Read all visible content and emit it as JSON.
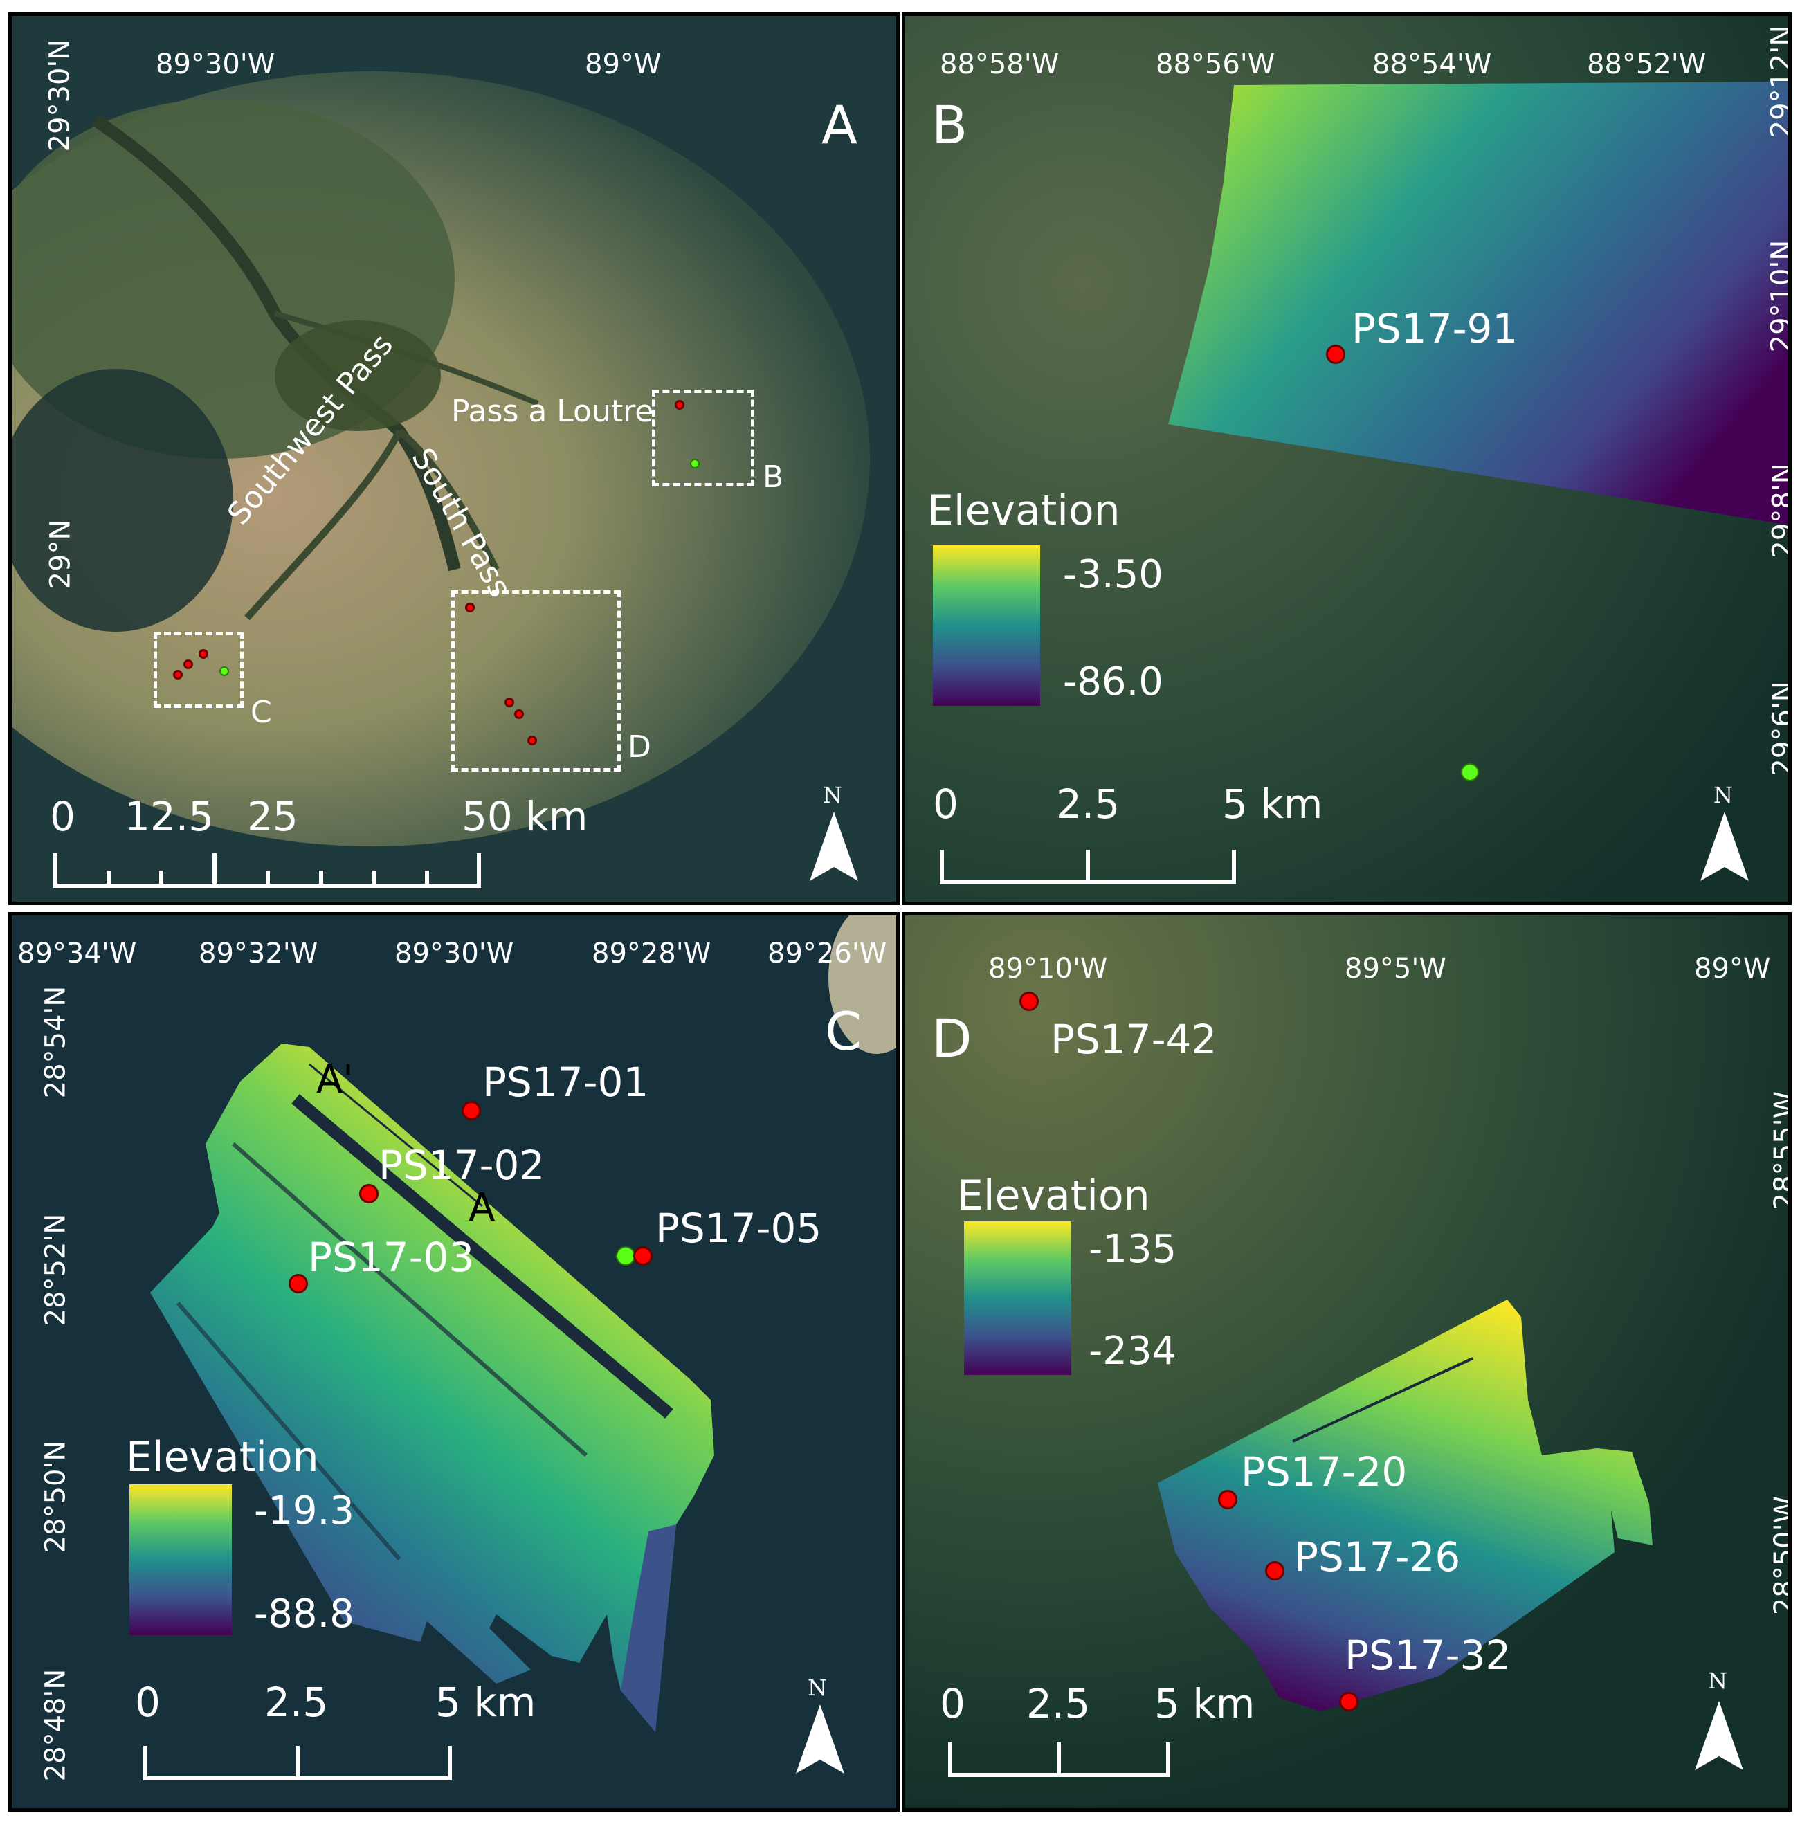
{
  "panels": {
    "A": {
      "label": "A",
      "lon_ticks": [
        "89°30'W",
        "89°W"
      ],
      "lat_ticks": [
        "29°30'N",
        "29°N"
      ],
      "place_labels": {
        "pass_a_loutre": "Pass a Loutre",
        "southwest_pass": "Southwest Pass",
        "south_pass": "South Pass"
      },
      "inset_labels": {
        "b": "B",
        "c": "C",
        "d": "D"
      },
      "scale": {
        "n0": "0",
        "n1": "12.5",
        "n2": "25",
        "n3": "50 km"
      },
      "north": "N"
    },
    "B": {
      "label": "B",
      "lon_ticks": [
        "88°58'W",
        "88°56'W",
        "88°54'W",
        "88°52'W"
      ],
      "lat_ticks": [
        "29°12'N",
        "29°10'N",
        "29°8'N",
        "29°6'N"
      ],
      "sites": {
        "ps1791": "PS17-91"
      },
      "legend": {
        "title": "Elevation",
        "max": "-3.50",
        "min": "-86.0"
      },
      "scale": {
        "n0": "0",
        "n1": "2.5",
        "n2": "5 km"
      },
      "north": "N"
    },
    "C": {
      "label": "C",
      "lon_ticks": [
        "89°34'W",
        "89°32'W",
        "89°30'W",
        "89°28'W",
        "89°26'W"
      ],
      "lat_ticks": [
        "28°54'N",
        "28°52'N",
        "28°50'N",
        "28°48'N"
      ],
      "sites": {
        "ps1701": "PS17-01",
        "ps1702": "PS17-02",
        "ps1703": "PS17-03",
        "ps1705": "PS17-05"
      },
      "profile": {
        "a": "A",
        "a_prime": "A'"
      },
      "legend": {
        "title": "Elevation",
        "max": "-19.3",
        "min": "-88.8"
      },
      "scale": {
        "n0": "0",
        "n1": "2.5",
        "n2": "5 km"
      },
      "north": "N"
    },
    "D": {
      "label": "D",
      "lon_ticks": [
        "89°10'W",
        "89°5'W",
        "89°W"
      ],
      "lat_ticks": [
        "28°55'W",
        "28°50'W"
      ],
      "sites": {
        "ps1742": "PS17-42",
        "ps1720": "PS17-20",
        "ps1726": "PS17-26",
        "ps1732": "PS17-32"
      },
      "legend": {
        "title": "Elevation",
        "max": "-135",
        "min": "-234"
      },
      "scale": {
        "n0": "0",
        "n1": "2.5",
        "n2": "5 km"
      },
      "north": "N"
    }
  },
  "colors": {
    "red_marker": "#ff0000",
    "green_marker": "#5cff1a",
    "text": "#ffffff",
    "ramp_top": "#fde725",
    "ramp_bottom": "#440154"
  }
}
